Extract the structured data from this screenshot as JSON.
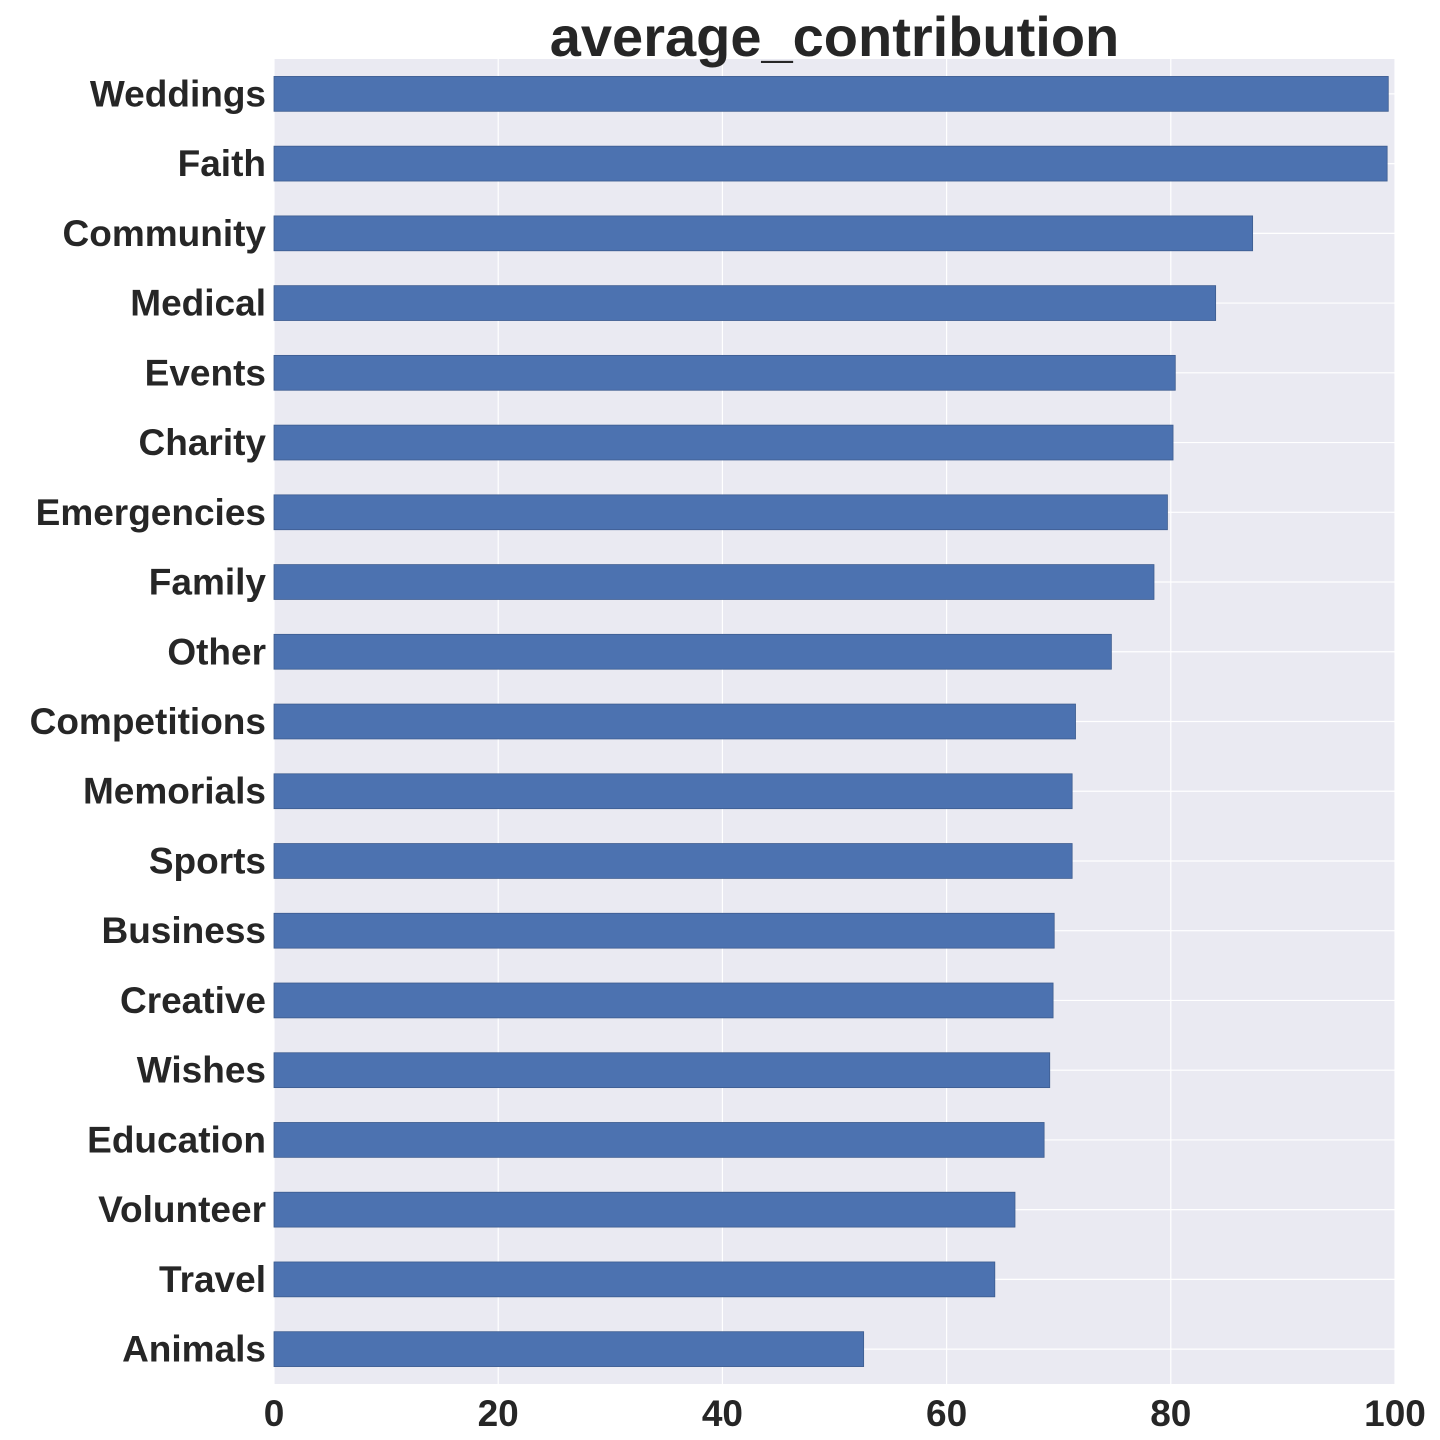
{
  "chart_data": {
    "type": "bar",
    "orientation": "horizontal",
    "title": "average_contribution",
    "xlabel": "",
    "ylabel": "",
    "xlim": [
      0,
      100
    ],
    "xticks": [
      0,
      20,
      40,
      60,
      80,
      100
    ],
    "grid": true,
    "legend": "none",
    "categories": [
      "Weddings",
      "Faith",
      "Community",
      "Medical",
      "Events",
      "Charity",
      "Emergencies",
      "Family",
      "Other",
      "Competitions",
      "Memorials",
      "Sports",
      "Business",
      "Creative",
      "Wishes",
      "Education",
      "Volunteer",
      "Travel",
      "Animals"
    ],
    "values": [
      99.4,
      99.3,
      87.3,
      84.0,
      80.4,
      80.2,
      79.7,
      78.5,
      74.7,
      71.5,
      71.2,
      71.2,
      69.6,
      69.5,
      69.2,
      68.7,
      66.1,
      64.3,
      52.6
    ]
  },
  "colors": {
    "bar": "#4c72b0",
    "plot_background": "#eaeaf2",
    "grid": "#ffffff",
    "text": "#262626"
  }
}
